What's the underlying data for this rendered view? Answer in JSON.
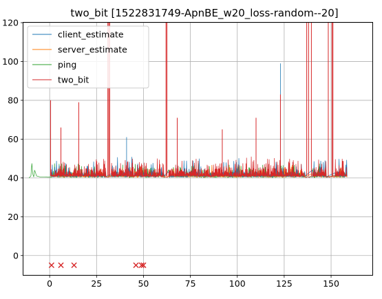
{
  "chart_data": {
    "type": "line",
    "title": "two_bit [1522831749-ApnBE_w20_loss-random--20]",
    "xlabel": "",
    "ylabel": "",
    "xlim": [
      -14,
      172
    ],
    "ylim": [
      -10,
      120
    ],
    "xticks": [
      0,
      25,
      50,
      75,
      100,
      125,
      150
    ],
    "yticks": [
      0,
      20,
      40,
      60,
      80,
      100,
      120
    ],
    "grid": true,
    "legend_position": "upper-left",
    "series": [
      {
        "name": "client_estimate",
        "color": "#1f77b4"
      },
      {
        "name": "server_estimate",
        "color": "#ff7f0e"
      },
      {
        "name": "ping",
        "color": "#2ca02c"
      },
      {
        "name": "two_bit",
        "color": "#d62728"
      }
    ],
    "ping_start": {
      "x": [
        -11,
        -10,
        -9.5,
        -9,
        -8.5,
        -8,
        -7,
        -5,
        -3,
        -1,
        0,
        1
      ],
      "y": [
        40,
        41,
        47.5,
        42,
        40.5,
        44,
        41,
        40.5,
        40.5,
        40.4,
        40.4,
        40.4
      ]
    },
    "two_bit_spikes": [
      {
        "x": 0.5,
        "y": 80
      },
      {
        "x": 6,
        "y": 66
      },
      {
        "x": 15.5,
        "y": 79
      },
      {
        "x": 31,
        "y": 120
      },
      {
        "x": 31.5,
        "y": 120
      },
      {
        "x": 32,
        "y": 120
      },
      {
        "x": 62,
        "y": 120
      },
      {
        "x": 62.5,
        "y": 120
      },
      {
        "x": 68,
        "y": 71
      },
      {
        "x": 92,
        "y": 65
      },
      {
        "x": 110,
        "y": 71
      },
      {
        "x": 123,
        "y": 83
      },
      {
        "x": 137,
        "y": 120
      },
      {
        "x": 138,
        "y": 120
      },
      {
        "x": 139.5,
        "y": 120
      },
      {
        "x": 148.5,
        "y": 120
      },
      {
        "x": 150.5,
        "y": 120
      },
      {
        "x": 151,
        "y": 120
      }
    ],
    "client_spikes": [
      {
        "x": 0.5,
        "y": 63
      },
      {
        "x": 41,
        "y": 61
      },
      {
        "x": 123,
        "y": 99
      }
    ],
    "loss_markers": {
      "x": [
        1,
        6,
        13,
        46,
        49,
        50
      ],
      "y": [
        -5,
        -5,
        -5,
        -5,
        -5,
        -5
      ],
      "color": "#d62728"
    }
  }
}
